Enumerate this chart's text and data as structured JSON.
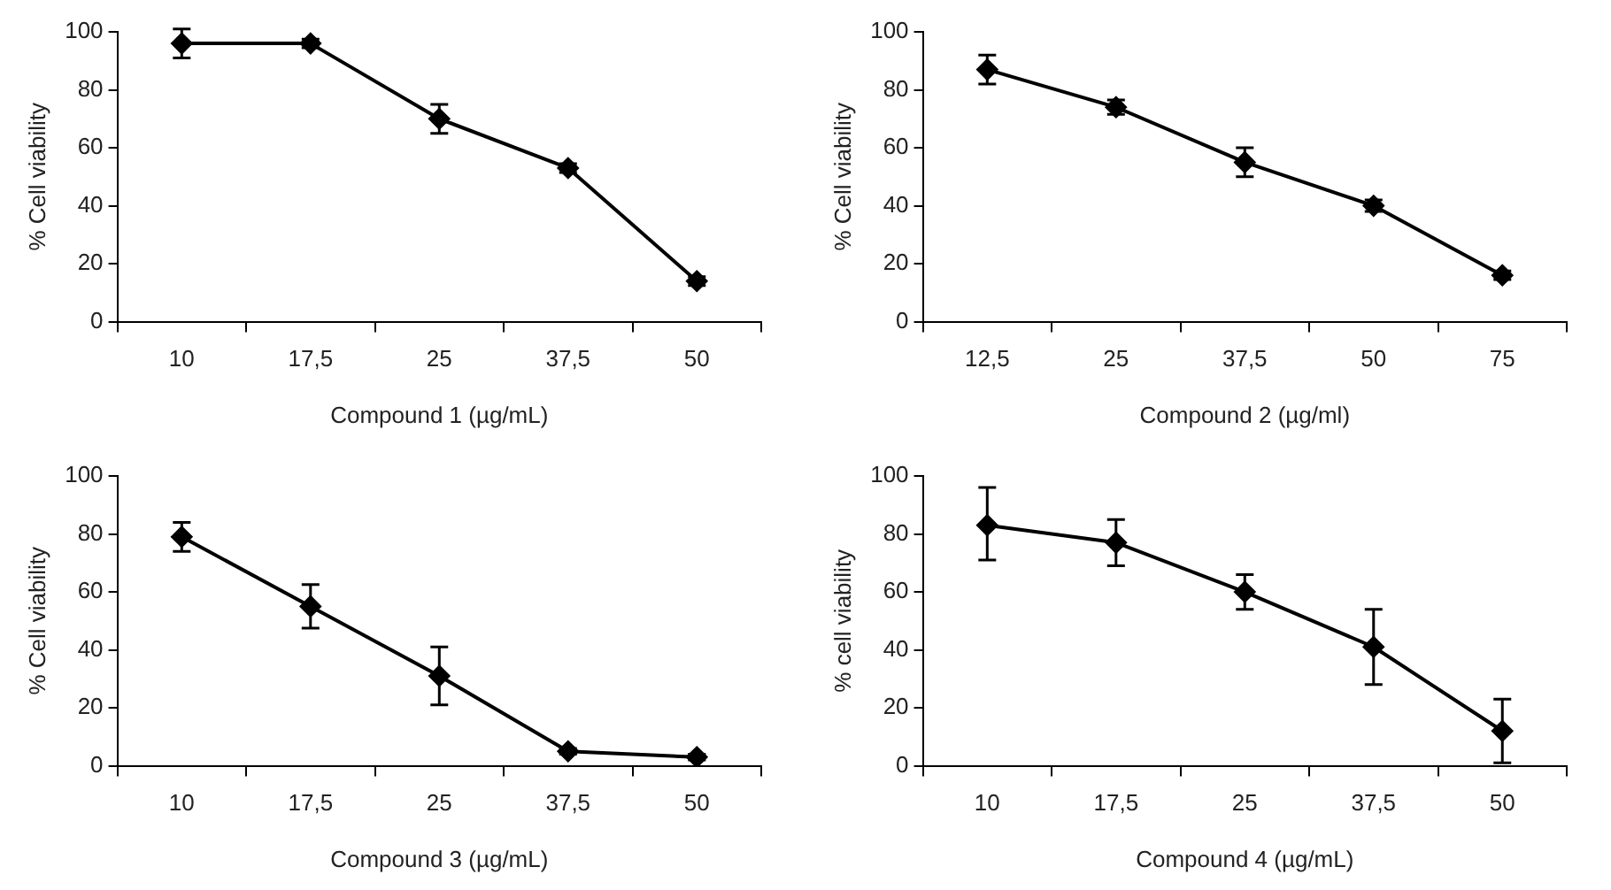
{
  "chart_data": [
    {
      "type": "line",
      "categories": [
        "10",
        "17,5",
        "25",
        "37,5",
        "50"
      ],
      "xlabel": "Compound 1 (µg/mL)",
      "ylabel": "% Cell viability",
      "ylim": [
        0,
        100
      ],
      "yticks": [
        0,
        20,
        40,
        60,
        80,
        100
      ],
      "grid": false,
      "legend": false,
      "marker": "diamond",
      "line_style": "solid",
      "series": [
        {
          "color": "#000000",
          "values": [
            96,
            96,
            70,
            53,
            14
          ],
          "errors": [
            5,
            1.5,
            5,
            1.5,
            1.5
          ]
        }
      ]
    },
    {
      "type": "line",
      "categories": [
        "12,5",
        "25",
        "37,5",
        "50",
        "75"
      ],
      "xlabel": "Compound 2 (µg/ml)",
      "ylabel": "% Cell viability",
      "ylim": [
        0,
        100
      ],
      "yticks": [
        0,
        20,
        40,
        60,
        80,
        100
      ],
      "grid": false,
      "legend": false,
      "marker": "diamond",
      "line_style": "solid",
      "series": [
        {
          "color": "#000000",
          "values": [
            87,
            74,
            55,
            40,
            16
          ],
          "errors": [
            5,
            2.5,
            5,
            2,
            1.5
          ]
        }
      ]
    },
    {
      "type": "line",
      "categories": [
        "10",
        "17,5",
        "25",
        "37,5",
        "50"
      ],
      "xlabel": "Compound 3 (µg/mL)",
      "ylabel": "% Cell viability",
      "ylim": [
        0,
        100
      ],
      "yticks": [
        0,
        20,
        40,
        60,
        80,
        100
      ],
      "grid": false,
      "legend": false,
      "marker": "diamond",
      "line_style": "solid",
      "series": [
        {
          "color": "#000000",
          "values": [
            79,
            55,
            31,
            5,
            3
          ],
          "errors": [
            5,
            7.5,
            10,
            1,
            1
          ]
        }
      ]
    },
    {
      "type": "line",
      "categories": [
        "10",
        "17,5",
        "25",
        "37,5",
        "50"
      ],
      "xlabel": "Compound 4 (µg/mL)",
      "ylabel": "% cell viability",
      "ylim": [
        0,
        100
      ],
      "yticks": [
        0,
        20,
        40,
        60,
        80,
        100
      ],
      "grid": false,
      "legend": false,
      "marker": "diamond",
      "line_style": "solid",
      "series": [
        {
          "color": "#000000",
          "values": [
            83,
            77,
            60,
            41,
            12
          ],
          "errors": [
            [
              71,
              96
            ],
            [
              69,
              85
            ],
            [
              54,
              66
            ],
            [
              28,
              54
            ],
            [
              1,
              23
            ]
          ]
        }
      ]
    }
  ]
}
